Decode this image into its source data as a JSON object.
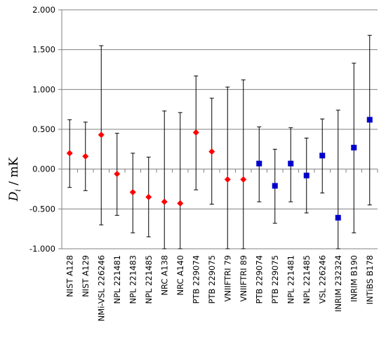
{
  "chart_data": {
    "type": "scatter",
    "ylabel_main": "D",
    "ylabel_sub": "i",
    "ylabel_rest": " / mK",
    "ylim": [
      -1.0,
      2.0
    ],
    "yticks": [
      2.0,
      1.5,
      1.0,
      0.5,
      0.0,
      -0.5,
      -1.0
    ],
    "ytick_labels": [
      "2.000",
      "1.500",
      "1.000",
      "0.500",
      "0.000",
      "-0.500",
      "-1.000"
    ],
    "grid": true,
    "categories": [
      "NIST A128",
      "NIST A129",
      "NMi-VSL 226246",
      "NPL 221481",
      "NPL 221483",
      "NPL 221485",
      "NRC A138",
      "NRC A140",
      "PTB 229074",
      "PTB 229075",
      "VNIIFTRI 79",
      "VNIIFTRI 89",
      "PTB 229074",
      "PTB 229075",
      "NPL 221481",
      "NPL 221485",
      "VSL 226246",
      "INRIM 232324",
      "INRIM B190",
      "INTiBS B178"
    ],
    "series": [
      {
        "marker": "diamond",
        "color": "#ff0000",
        "values": [
          0.2,
          0.16,
          0.43,
          -0.06,
          -0.29,
          -0.35,
          -0.41,
          -0.43,
          0.46,
          0.22,
          -0.13,
          -0.13,
          null,
          null,
          null,
          null,
          null,
          null,
          null,
          null
        ],
        "err_low": [
          0.43,
          0.43,
          1.13,
          0.52,
          0.51,
          0.5,
          1.0,
          1.0,
          0.72,
          0.66,
          1.0,
          1.0,
          null,
          null,
          null,
          null,
          null,
          null,
          null,
          null
        ],
        "err_high": [
          0.42,
          0.43,
          1.12,
          0.51,
          0.49,
          0.5,
          1.14,
          1.14,
          0.71,
          0.67,
          1.16,
          1.25,
          null,
          null,
          null,
          null,
          null,
          null,
          null,
          null
        ]
      },
      {
        "marker": "square",
        "color": "#0000cc",
        "values": [
          null,
          null,
          null,
          null,
          null,
          null,
          null,
          null,
          null,
          null,
          null,
          null,
          0.07,
          -0.21,
          0.07,
          -0.08,
          0.17,
          -0.61,
          0.27,
          0.62
        ],
        "err_low": [
          null,
          null,
          null,
          null,
          null,
          null,
          null,
          null,
          null,
          null,
          null,
          null,
          0.48,
          0.47,
          0.48,
          0.47,
          0.47,
          0.7,
          1.07,
          1.07
        ],
        "err_high": [
          null,
          null,
          null,
          null,
          null,
          null,
          null,
          null,
          null,
          null,
          null,
          null,
          0.46,
          0.46,
          0.45,
          0.47,
          0.46,
          1.35,
          1.06,
          1.06
        ]
      }
    ]
  }
}
